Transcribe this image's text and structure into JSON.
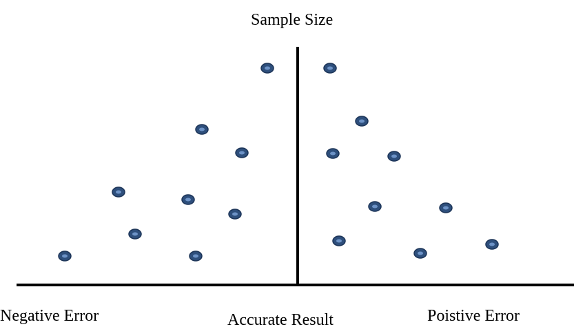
{
  "labels": {
    "top": "Sample Size",
    "left": "Negative Error",
    "center": "Accurate Result",
    "right": "Poistive Error"
  },
  "colors": {
    "point_fill": "#2e4f7c",
    "point_highlight": "#6d93c7",
    "axis": "#000000"
  },
  "points": {
    "count": 20
  }
}
